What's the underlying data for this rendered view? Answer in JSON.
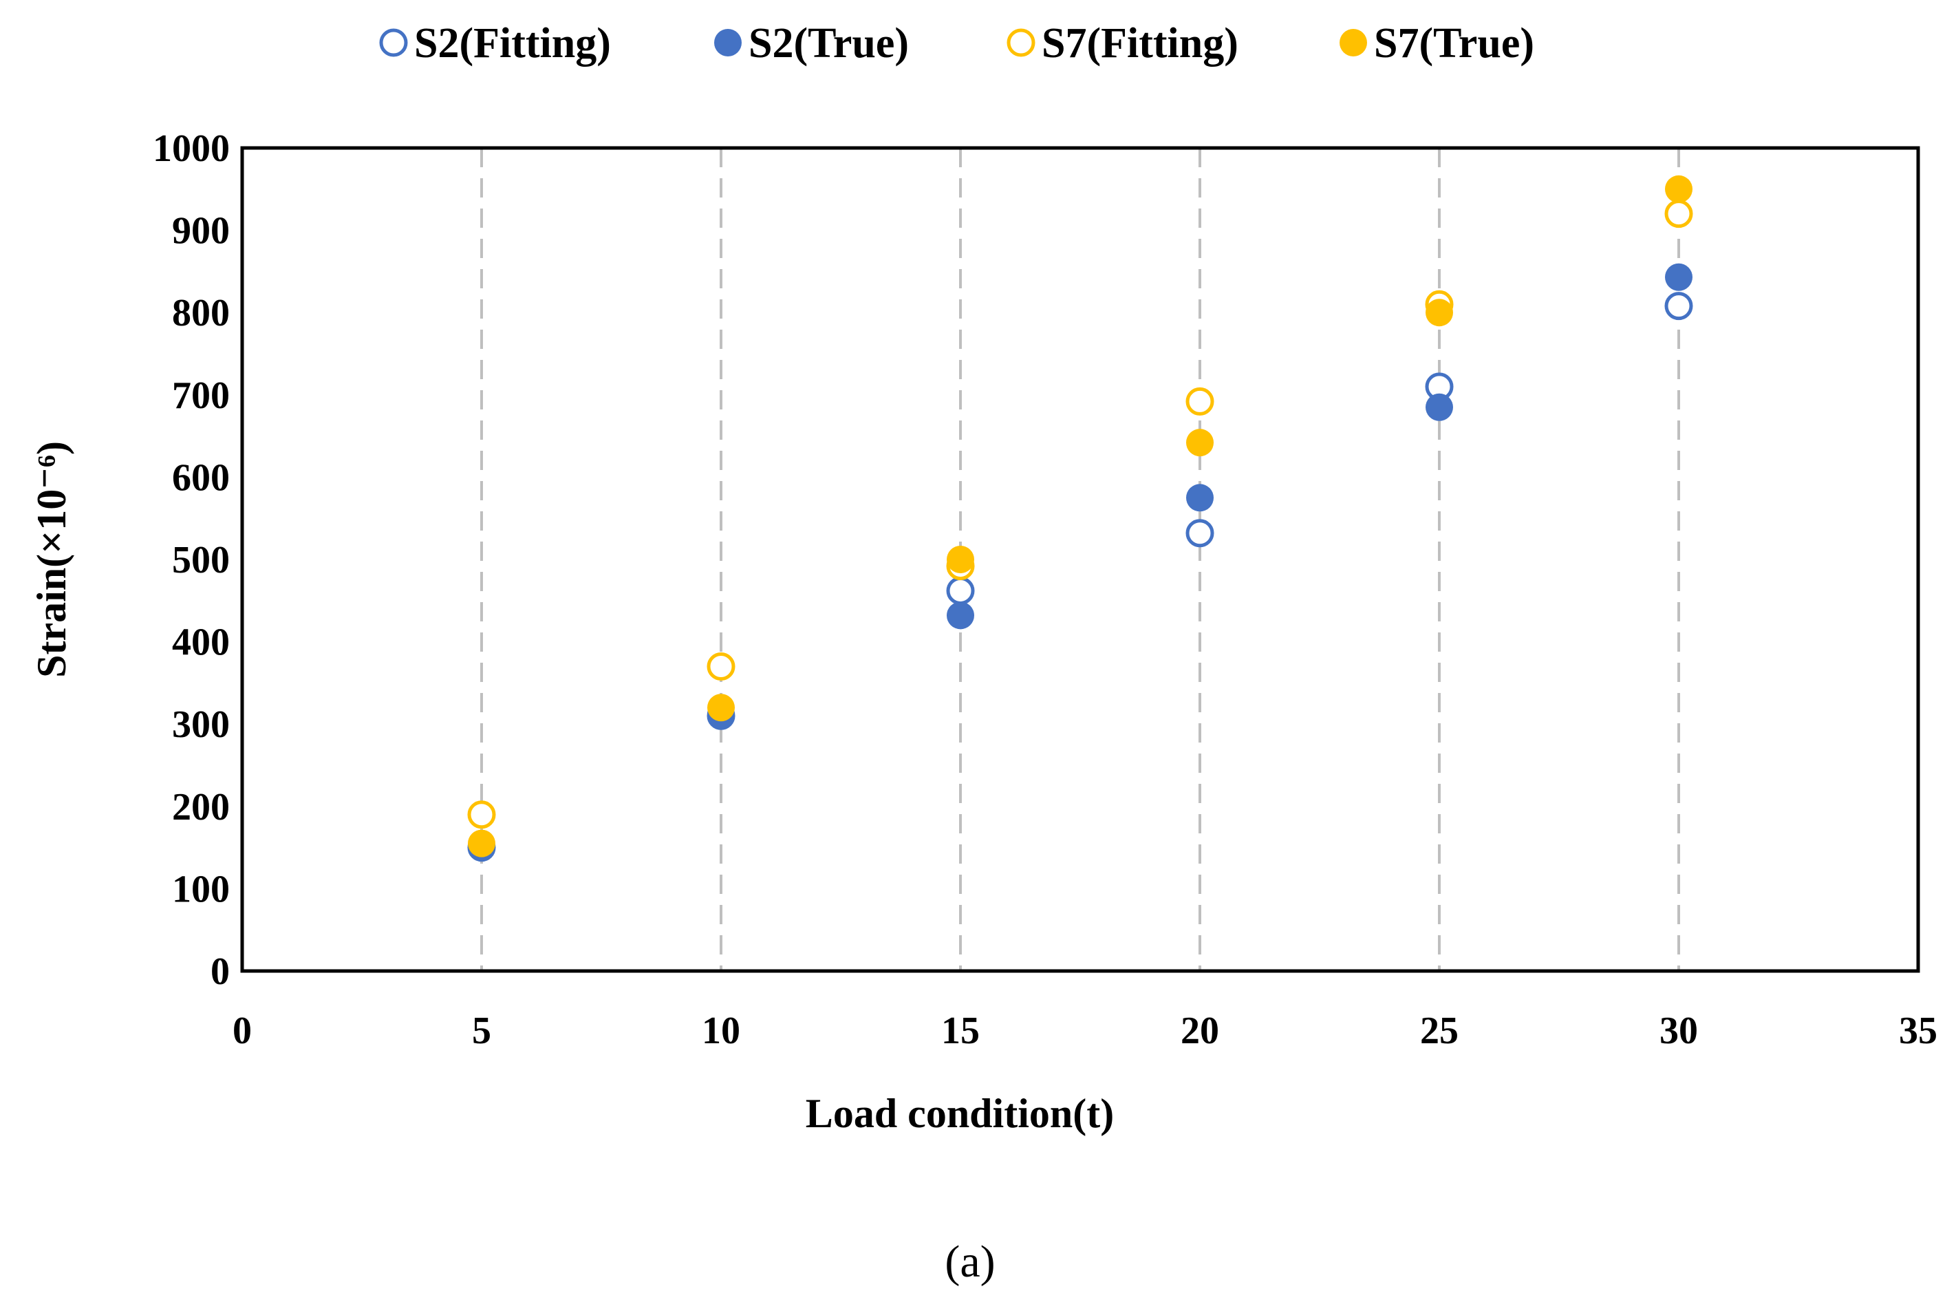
{
  "chart_data": {
    "type": "scatter",
    "title": "",
    "xlabel": "Load condition(t)",
    "ylabel": "Strain(×10⁻⁶)",
    "xlim": [
      0,
      35
    ],
    "ylim": [
      0,
      1000
    ],
    "xticks": [
      0,
      5,
      10,
      15,
      20,
      25,
      30,
      35
    ],
    "yticks": [
      0,
      100,
      200,
      300,
      400,
      500,
      600,
      700,
      800,
      900,
      1000
    ],
    "grid": "vertical dashed lines at x ticks",
    "legend_position": "top-center",
    "series": [
      {
        "name": "S2(Fitting)",
        "marker": "hollow-circle",
        "color": "#4472C4",
        "x": [
          5,
          10,
          15,
          20,
          25,
          30
        ],
        "y": [
          150,
          310,
          462,
          532,
          710,
          808
        ]
      },
      {
        "name": "S2(True)",
        "marker": "filled-circle",
        "color": "#4472C4",
        "x": [
          5,
          10,
          15,
          20,
          25,
          30
        ],
        "y": [
          152,
          312,
          432,
          575,
          685,
          843
        ]
      },
      {
        "name": "S7(Fitting)",
        "marker": "hollow-circle",
        "color": "#FFC000",
        "x": [
          5,
          10,
          15,
          20,
          25,
          30
        ],
        "y": [
          190,
          370,
          492,
          692,
          810,
          920
        ]
      },
      {
        "name": "S7(True)",
        "marker": "filled-circle",
        "color": "#FFC000",
        "x": [
          5,
          10,
          15,
          20,
          25,
          30
        ],
        "y": [
          155,
          320,
          500,
          642,
          800,
          950
        ]
      }
    ]
  },
  "caption": "(a)"
}
